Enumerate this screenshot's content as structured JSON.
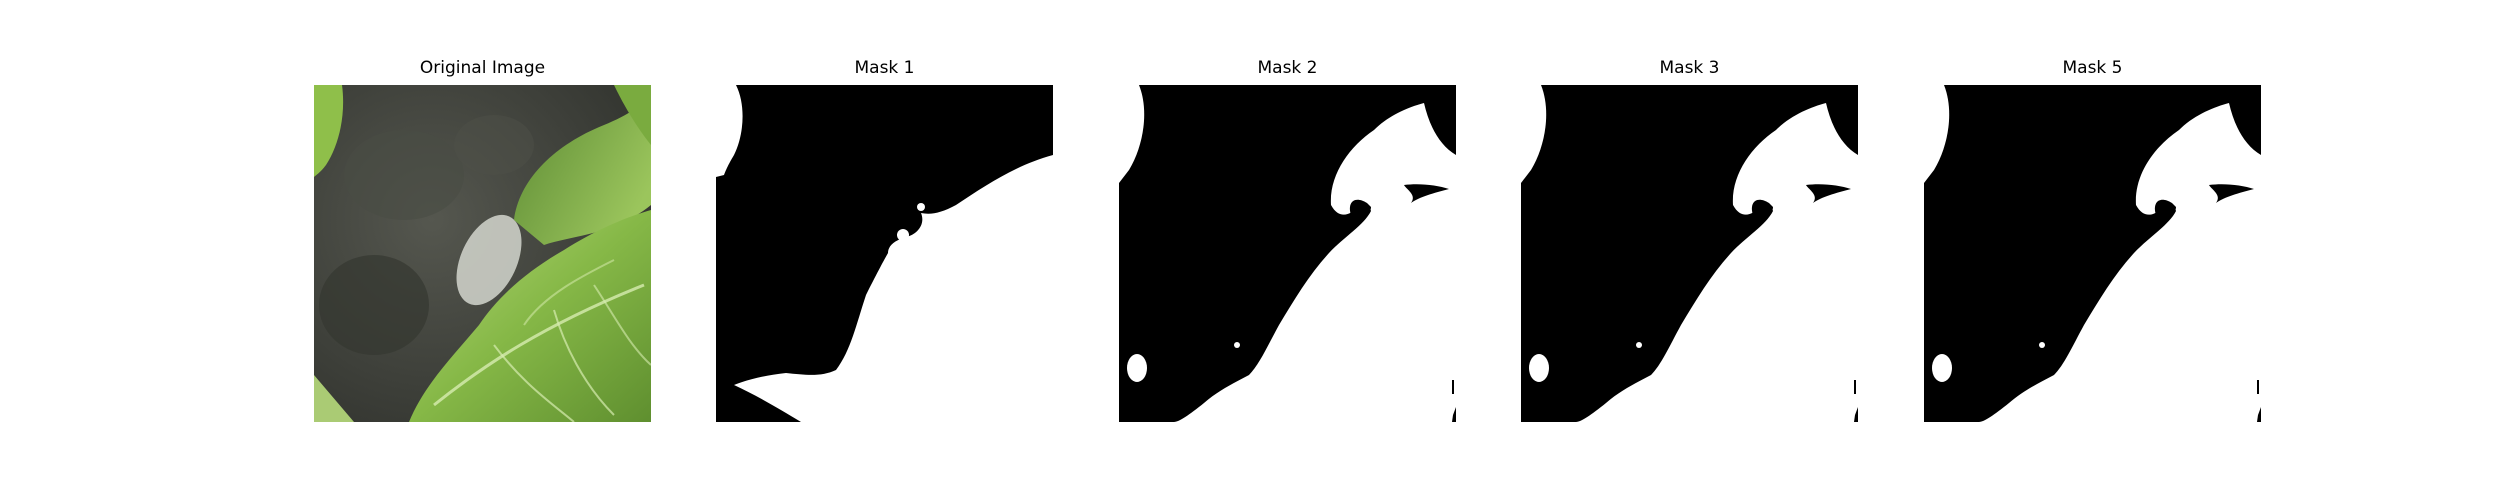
{
  "panels": [
    {
      "title": "Original Image"
    },
    {
      "title": "Mask 1"
    },
    {
      "title": "Mask 2"
    },
    {
      "title": "Mask 3"
    },
    {
      "title": "Mask 5"
    }
  ],
  "colors": {
    "background": "#ffffff",
    "mask_background": "#000000",
    "mask_foreground": "#ffffff",
    "backdrop_gray": "#3f413b",
    "leaf_green": "#8fbf4a",
    "leaf_dark": "#4f7e2a"
  }
}
